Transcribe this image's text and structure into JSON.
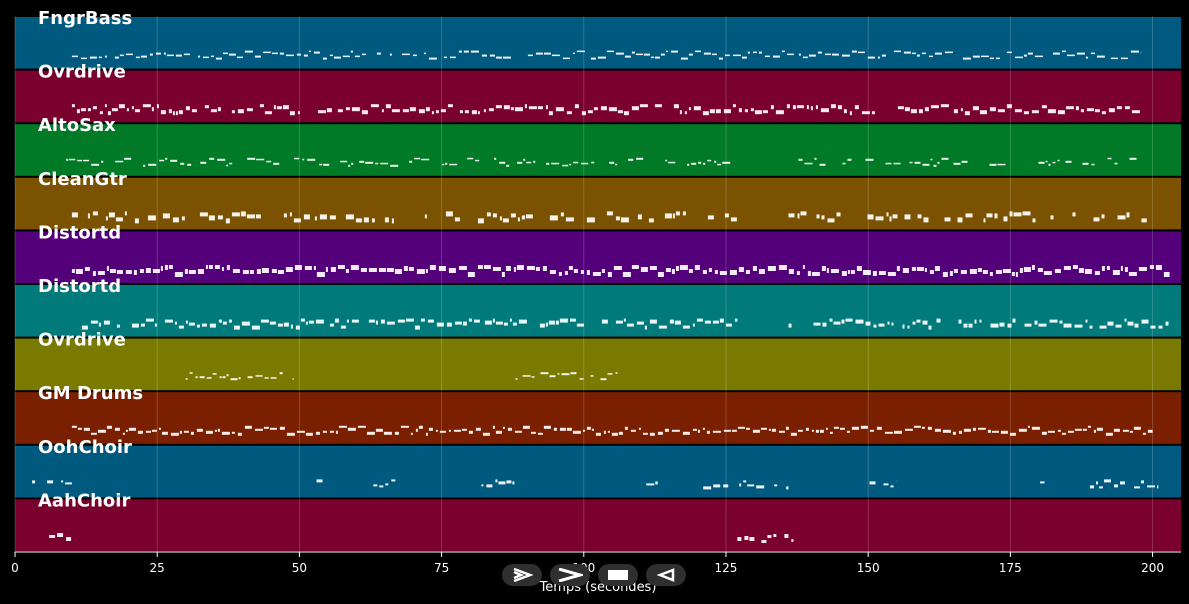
{
  "chart_data": {
    "type": "piano-roll",
    "xlabel": "Temps (secondes)",
    "xlim": [
      0,
      205
    ],
    "xticks": [
      0,
      25,
      50,
      75,
      100,
      125,
      150,
      175,
      200
    ],
    "grid": true,
    "tracks": [
      {
        "name": "FngrBass",
        "color": "#005a80",
        "segments": [
          [
            10,
            198
          ]
        ],
        "density": 0.9,
        "thickness": 2
      },
      {
        "name": "Ovrdrive",
        "color": "#7a002e",
        "segments": [
          [
            10,
            198
          ]
        ],
        "density": 0.9,
        "thickness": 4
      },
      {
        "name": "AltoSax",
        "color": "#007a26",
        "segments": [
          [
            9,
            126
          ],
          [
            136,
            198
          ]
        ],
        "density": 0.7,
        "thickness": 2
      },
      {
        "name": "CleanGtr",
        "color": "#7a5200",
        "segments": [
          [
            10,
            127
          ],
          [
            136,
            199
          ]
        ],
        "density": 0.7,
        "thickness": 5
      },
      {
        "name": "Distortd",
        "color": "#54007a",
        "segments": [
          [
            10,
            203
          ]
        ],
        "density": 1.0,
        "thickness": 5
      },
      {
        "name": "Distortd",
        "color": "#007a7a",
        "segments": [
          [
            10,
            127
          ],
          [
            136,
            203
          ]
        ],
        "density": 0.9,
        "thickness": 4
      },
      {
        "name": "Ovrdrive",
        "color": "#7a7a00",
        "segments": [
          [
            30,
            49
          ],
          [
            88,
            107
          ]
        ],
        "density": 0.8,
        "thickness": 2
      },
      {
        "name": "GM Drums",
        "color": "#7a2000",
        "segments": [
          [
            10,
            200
          ]
        ],
        "density": 1.0,
        "thickness": 3
      },
      {
        "name": "OohChoir",
        "color": "#005a80",
        "segments": [
          [
            3,
            10
          ],
          [
            53,
            55
          ],
          [
            63,
            68
          ],
          [
            82,
            88
          ],
          [
            111,
            113
          ],
          [
            121,
            136
          ],
          [
            149,
            155
          ],
          [
            179,
            181
          ],
          [
            189,
            201
          ]
        ],
        "density": 0.8,
        "thickness": 3
      },
      {
        "name": "AahChoir",
        "color": "#7a002e",
        "segments": [
          [
            6,
            10
          ],
          [
            127,
            137
          ]
        ],
        "density": 0.9,
        "thickness": 4
      }
    ]
  },
  "controls": {
    "play_icon": "play-outline-icon",
    "forward_icon": "forward-chevron-icon",
    "stop_icon": "stop-icon",
    "back_icon": "rewind-triangle-icon"
  }
}
